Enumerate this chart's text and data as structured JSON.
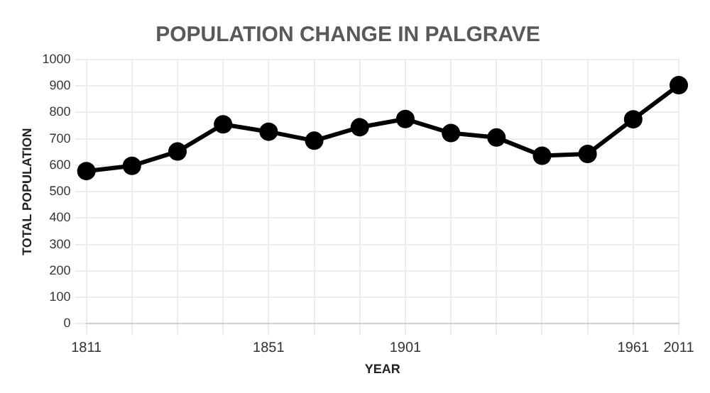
{
  "chart_data": {
    "type": "line",
    "title": "POPULATION CHANGE IN PALGRAVE",
    "xlabel": "YEAR",
    "ylabel": "TOTAL POPULATION",
    "categories": [
      "1811",
      null,
      null,
      null,
      "1851",
      null,
      null,
      "1901",
      null,
      null,
      null,
      null,
      "1961",
      "2011"
    ],
    "series": [
      {
        "color": "#000000",
        "values": [
          578,
          598,
          652,
          755,
          727,
          693,
          744,
          775,
          722,
          705,
          636,
          643,
          774,
          903
        ]
      }
    ],
    "ylim": [
      0,
      1000
    ],
    "yticks": [
      0,
      100,
      200,
      300,
      400,
      500,
      600,
      700,
      800,
      900,
      1000
    ],
    "grid": true,
    "marker": "circle",
    "line_style": "solid"
  }
}
